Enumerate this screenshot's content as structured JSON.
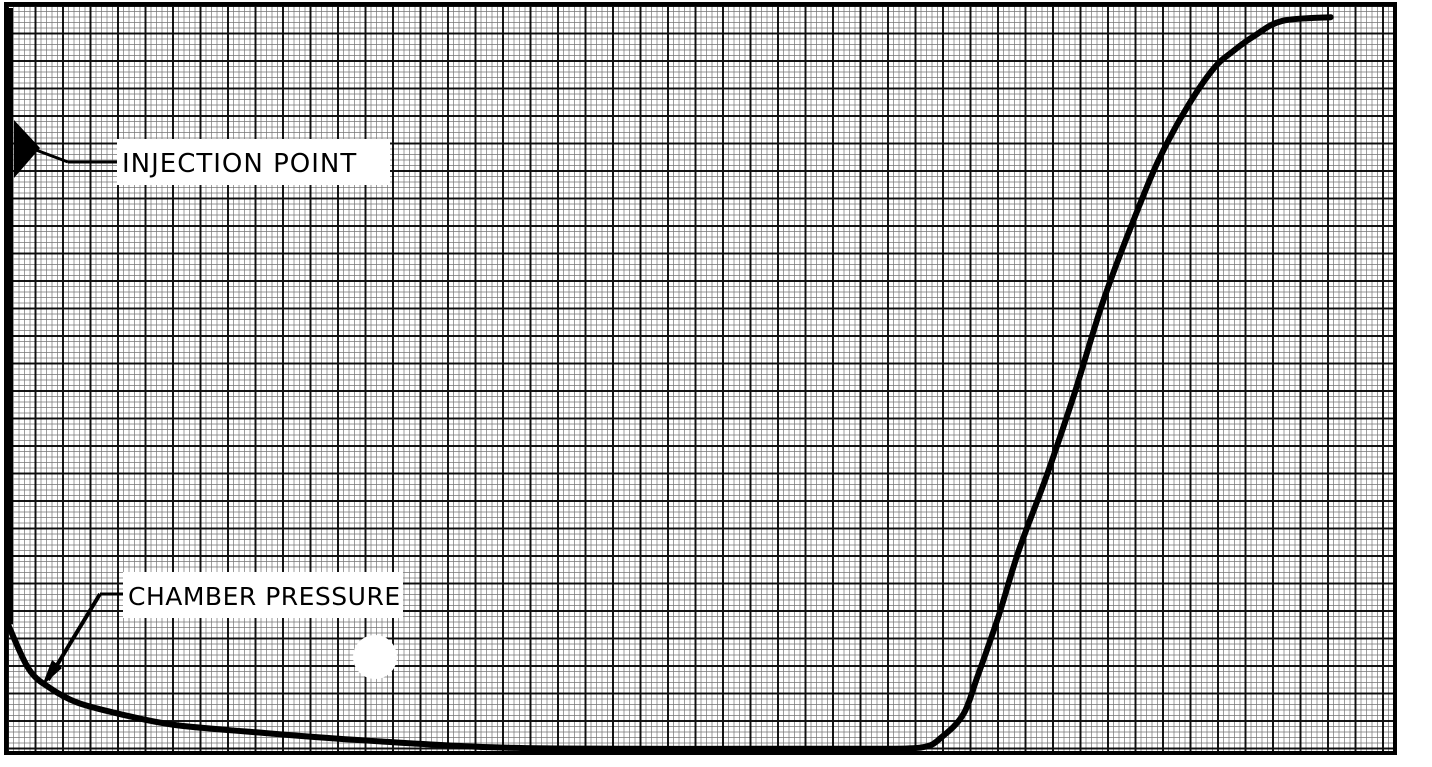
{
  "chart_data": {
    "type": "line",
    "title": "",
    "xlabel": "",
    "ylabel": "",
    "grid": true,
    "xlim": [
      0,
      100
    ],
    "ylim": [
      0,
      100
    ],
    "series": [
      {
        "x": [
          0,
          1.5,
          3,
          5,
          8,
          12,
          18,
          25,
          35,
          45,
          55,
          62,
          66,
          67.5,
          69,
          70,
          71.5,
          73,
          75,
          77,
          79,
          81,
          83,
          85,
          87,
          88.5,
          90,
          92,
          95.5
        ],
        "y": [
          17,
          11,
          8.5,
          6.5,
          5,
          3.5,
          2.5,
          1.5,
          0.5,
          0.3,
          0.3,
          0.3,
          0.5,
          2,
          5,
          10,
          18,
          27,
          37,
          48,
          60,
          70,
          79,
          86,
          91.5,
          94,
          96,
          98,
          98.5
        ]
      }
    ],
    "annotations": [
      {
        "text": "INJECTION POINT",
        "x": 1.5,
        "y": 79
      },
      {
        "text": "CHAMBER PRESSURE",
        "x": 3,
        "y": 10.5
      }
    ],
    "colors": {
      "line": "#000000",
      "grid": "#000000",
      "background": "#ffffff"
    }
  }
}
